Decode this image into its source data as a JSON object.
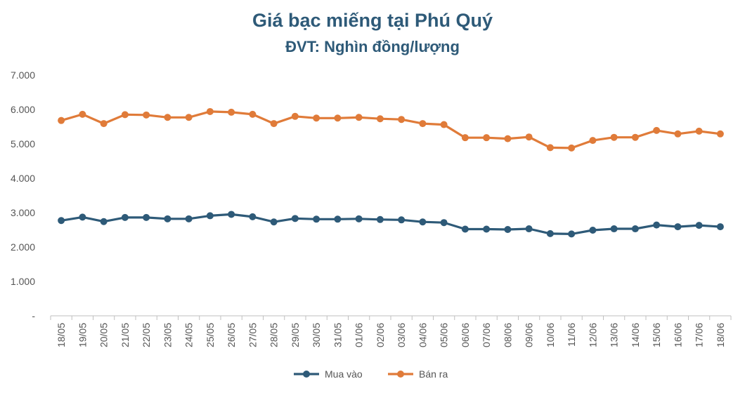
{
  "chart_data": {
    "type": "line",
    "title": "Giá bạc miếng tại Phú Quý",
    "subtitle": "ĐVT: Nghìn đồng/lượng",
    "xlabel": "",
    "ylabel": "",
    "ylim": [
      0,
      7000
    ],
    "yticks": [
      0,
      1000,
      2000,
      3000,
      4000,
      5000,
      6000,
      7000
    ],
    "ytick_labels": [
      "-",
      "1.000",
      "2.000",
      "3.000",
      "4.000",
      "5.000",
      "6.000",
      "7.000"
    ],
    "grid": false,
    "legend": "bottom",
    "categories": [
      "18/05",
      "19/05",
      "20/05",
      "21/05",
      "22/05",
      "23/05",
      "24/05",
      "25/05",
      "26/05",
      "27/05",
      "28/05",
      "29/05",
      "30/05",
      "31/05",
      "01/06",
      "02/06",
      "03/06",
      "04/06",
      "05/06",
      "06/06",
      "07/06",
      "08/06",
      "09/06",
      "10/06",
      "11/06",
      "12/06",
      "13/06",
      "14/06",
      "15/06",
      "16/06",
      "17/06",
      "18/06"
    ],
    "series": [
      {
        "name": "Mua vào",
        "color": "#2e5a78",
        "values": [
          2770,
          2870,
          2740,
          2860,
          2860,
          2820,
          2820,
          2910,
          2950,
          2880,
          2730,
          2830,
          2810,
          2810,
          2820,
          2800,
          2790,
          2730,
          2710,
          2520,
          2520,
          2510,
          2530,
          2390,
          2380,
          2490,
          2530,
          2530,
          2640,
          2590,
          2630,
          2590
        ]
      },
      {
        "name": "Bán ra",
        "color": "#e07b39",
        "values": [
          5680,
          5860,
          5590,
          5850,
          5840,
          5770,
          5770,
          5940,
          5920,
          5860,
          5590,
          5800,
          5750,
          5750,
          5770,
          5730,
          5710,
          5590,
          5560,
          5180,
          5180,
          5150,
          5200,
          4890,
          4880,
          5100,
          5190,
          5190,
          5390,
          5290,
          5370,
          5290
        ]
      }
    ]
  }
}
